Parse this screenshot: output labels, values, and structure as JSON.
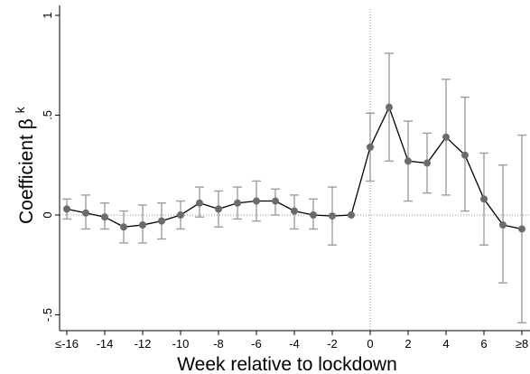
{
  "chart_data": {
    "type": "scatter",
    "title": "",
    "xlabel": "Week relative to lockdown",
    "ylabel": "Coefficient β",
    "ylabel_superscript": "k",
    "x_tick_labels": [
      "≤-16",
      "-14",
      "-12",
      "-10",
      "-8",
      "-6",
      "-4",
      "-2",
      "0",
      "2",
      "4",
      "6",
      "≥8"
    ],
    "x_tick_values": [
      -16,
      -14,
      -12,
      -10,
      -8,
      -6,
      -4,
      -2,
      0,
      2,
      4,
      6,
      8
    ],
    "y_tick_labels": [
      "-.5",
      "0",
      ".5",
      "1"
    ],
    "y_tick_values": [
      -0.5,
      0,
      0.5,
      1
    ],
    "xlim": [
      -16.5,
      8.5
    ],
    "ylim": [
      -0.57,
      1.02
    ],
    "reference_lines": {
      "x": 0,
      "y": 0,
      "style": "dotted"
    },
    "grid": false,
    "colors": {
      "marker": "#6b6b6b",
      "line": "#000000",
      "ci": "#9e9e9e",
      "reference": "#8c8c8c"
    },
    "series": [
      {
        "x": [
          -16,
          -15,
          -14,
          -13,
          -12,
          -11,
          -10,
          -9,
          -8,
          -7,
          -6,
          -5,
          -4,
          -3,
          -2,
          -1,
          0,
          1,
          2,
          3,
          4,
          5,
          6,
          7,
          8
        ],
        "y": [
          0.03,
          0.01,
          -0.01,
          -0.06,
          -0.05,
          -0.03,
          0.0,
          0.06,
          0.03,
          0.06,
          0.07,
          0.07,
          0.02,
          0.0,
          -0.005,
          0.0,
          0.34,
          0.54,
          0.27,
          0.26,
          0.39,
          0.3,
          0.08,
          -0.05,
          -0.07
        ],
        "ci_low": [
          -0.02,
          -0.07,
          -0.07,
          -0.14,
          -0.14,
          -0.12,
          -0.07,
          -0.01,
          -0.06,
          -0.02,
          -0.03,
          0.0,
          -0.07,
          -0.07,
          -0.15,
          null,
          0.17,
          0.27,
          0.07,
          0.11,
          0.1,
          0.02,
          -0.15,
          -0.34,
          -0.54
        ],
        "ci_high": [
          0.08,
          0.1,
          0.06,
          0.02,
          0.05,
          0.06,
          0.07,
          0.14,
          0.12,
          0.14,
          0.17,
          0.13,
          0.1,
          0.08,
          0.14,
          null,
          0.51,
          0.81,
          0.47,
          0.41,
          0.68,
          0.59,
          0.31,
          0.25,
          0.4
        ]
      }
    ]
  }
}
